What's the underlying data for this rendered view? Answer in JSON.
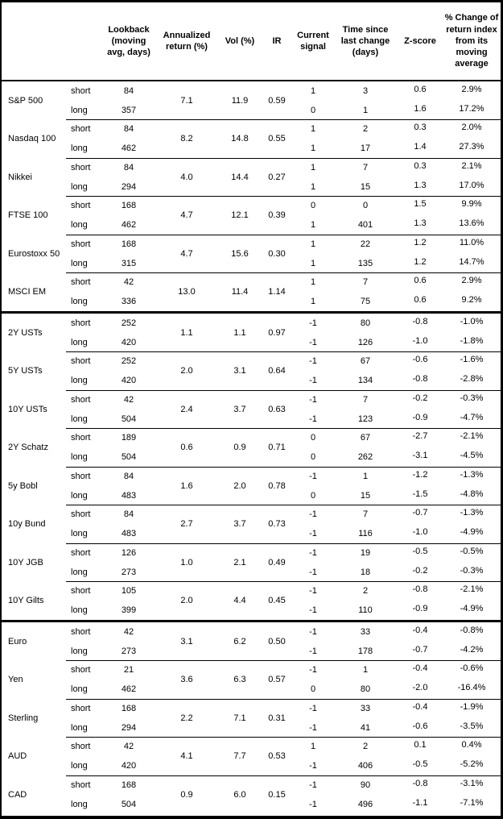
{
  "header": {
    "columns": [
      {
        "key": "lookback",
        "label": "Lookback\n(moving\navg, days)"
      },
      {
        "key": "annualized",
        "label": "Annualized\nreturn (%)"
      },
      {
        "key": "vol",
        "label": "Vol (%)"
      },
      {
        "key": "ir",
        "label": "IR"
      },
      {
        "key": "signal",
        "label": "Current\nsignal"
      },
      {
        "key": "time",
        "label": "Time since\nlast change\n(days)"
      },
      {
        "key": "zscore",
        "label": "Z-score"
      },
      {
        "key": "pct",
        "label": "% Change of\nreturn index\nfrom its\nmoving\naverage"
      }
    ]
  },
  "horizon_labels": {
    "short": "short",
    "long": "long"
  },
  "sections": [
    {
      "id": "equities",
      "instruments": [
        {
          "name": "S&P 500",
          "annualized_return": "7.1",
          "vol": "11.9",
          "ir": "0.59",
          "short": {
            "lookback": "84",
            "signal": "1",
            "time": "3",
            "zscore": "0.6",
            "pct": "2.9%"
          },
          "long": {
            "lookback": "357",
            "signal": "0",
            "time": "1",
            "zscore": "1.6",
            "pct": "17.2%"
          }
        },
        {
          "name": "Nasdaq 100",
          "annualized_return": "8.2",
          "vol": "14.8",
          "ir": "0.55",
          "short": {
            "lookback": "84",
            "signal": "1",
            "time": "2",
            "zscore": "0.3",
            "pct": "2.0%"
          },
          "long": {
            "lookback": "462",
            "signal": "1",
            "time": "17",
            "zscore": "1.4",
            "pct": "27.3%"
          }
        },
        {
          "name": "Nikkei",
          "annualized_return": "4.0",
          "vol": "14.4",
          "ir": "0.27",
          "short": {
            "lookback": "84",
            "signal": "1",
            "time": "7",
            "zscore": "0.3",
            "pct": "2.1%"
          },
          "long": {
            "lookback": "294",
            "signal": "1",
            "time": "15",
            "zscore": "1.3",
            "pct": "17.0%"
          }
        },
        {
          "name": "FTSE 100",
          "annualized_return": "4.7",
          "vol": "12.1",
          "ir": "0.39",
          "short": {
            "lookback": "168",
            "signal": "0",
            "time": "0",
            "zscore": "1.5",
            "pct": "9.9%"
          },
          "long": {
            "lookback": "462",
            "signal": "1",
            "time": "401",
            "zscore": "1.3",
            "pct": "13.6%"
          }
        },
        {
          "name": "Eurostoxx 50",
          "annualized_return": "4.7",
          "vol": "15.6",
          "ir": "0.30",
          "short": {
            "lookback": "168",
            "signal": "1",
            "time": "22",
            "zscore": "1.2",
            "pct": "11.0%"
          },
          "long": {
            "lookback": "315",
            "signal": "1",
            "time": "135",
            "zscore": "1.2",
            "pct": "14.7%"
          }
        },
        {
          "name": "MSCI EM",
          "annualized_return": "13.0",
          "vol": "11.4",
          "ir": "1.14",
          "short": {
            "lookback": "42",
            "signal": "1",
            "time": "7",
            "zscore": "0.6",
            "pct": "2.9%"
          },
          "long": {
            "lookback": "336",
            "signal": "1",
            "time": "75",
            "zscore": "0.6",
            "pct": "9.2%"
          }
        }
      ]
    },
    {
      "id": "bonds",
      "instruments": [
        {
          "name": "2Y USTs",
          "annualized_return": "1.1",
          "vol": "1.1",
          "ir": "0.97",
          "short": {
            "lookback": "252",
            "signal": "-1",
            "time": "80",
            "zscore": "-0.8",
            "pct": "-1.0%"
          },
          "long": {
            "lookback": "420",
            "signal": "-1",
            "time": "126",
            "zscore": "-1.0",
            "pct": "-1.8%"
          }
        },
        {
          "name": "5Y USTs",
          "annualized_return": "2.0",
          "vol": "3.1",
          "ir": "0.64",
          "short": {
            "lookback": "252",
            "signal": "-1",
            "time": "67",
            "zscore": "-0.6",
            "pct": "-1.6%"
          },
          "long": {
            "lookback": "420",
            "signal": "-1",
            "time": "134",
            "zscore": "-0.8",
            "pct": "-2.8%"
          }
        },
        {
          "name": "10Y USTs",
          "annualized_return": "2.4",
          "vol": "3.7",
          "ir": "0.63",
          "short": {
            "lookback": "42",
            "signal": "-1",
            "time": "7",
            "zscore": "-0.2",
            "pct": "-0.3%"
          },
          "long": {
            "lookback": "504",
            "signal": "-1",
            "time": "123",
            "zscore": "-0.9",
            "pct": "-4.7%"
          }
        },
        {
          "name": "2Y Schatz",
          "annualized_return": "0.6",
          "vol": "0.9",
          "ir": "0.71",
          "short": {
            "lookback": "189",
            "signal": "0",
            "time": "67",
            "zscore": "-2.7",
            "pct": "-2.1%"
          },
          "long": {
            "lookback": "504",
            "signal": "0",
            "time": "262",
            "zscore": "-3.1",
            "pct": "-4.5%"
          }
        },
        {
          "name": "5y Bobl",
          "annualized_return": "1.6",
          "vol": "2.0",
          "ir": "0.78",
          "short": {
            "lookback": "84",
            "signal": "-1",
            "time": "1",
            "zscore": "-1.2",
            "pct": "-1.3%"
          },
          "long": {
            "lookback": "483",
            "signal": "0",
            "time": "15",
            "zscore": "-1.5",
            "pct": "-4.8%"
          }
        },
        {
          "name": "10y Bund",
          "annualized_return": "2.7",
          "vol": "3.7",
          "ir": "0.73",
          "short": {
            "lookback": "84",
            "signal": "-1",
            "time": "7",
            "zscore": "-0.7",
            "pct": "-1.3%"
          },
          "long": {
            "lookback": "483",
            "signal": "-1",
            "time": "116",
            "zscore": "-1.0",
            "pct": "-4.9%"
          }
        },
        {
          "name": "10Y JGB",
          "annualized_return": "1.0",
          "vol": "2.1",
          "ir": "0.49",
          "short": {
            "lookback": "126",
            "signal": "-1",
            "time": "19",
            "zscore": "-0.5",
            "pct": "-0.5%"
          },
          "long": {
            "lookback": "273",
            "signal": "-1",
            "time": "18",
            "zscore": "-0.2",
            "pct": "-0.3%"
          }
        },
        {
          "name": "10Y Gilts",
          "annualized_return": "2.0",
          "vol": "4.4",
          "ir": "0.45",
          "short": {
            "lookback": "105",
            "signal": "-1",
            "time": "2",
            "zscore": "-0.8",
            "pct": "-2.1%"
          },
          "long": {
            "lookback": "399",
            "signal": "-1",
            "time": "110",
            "zscore": "-0.9",
            "pct": "-4.9%"
          }
        }
      ]
    },
    {
      "id": "currencies",
      "instruments": [
        {
          "name": "Euro",
          "annualized_return": "3.1",
          "vol": "6.2",
          "ir": "0.50",
          "short": {
            "lookback": "42",
            "signal": "-1",
            "time": "33",
            "zscore": "-0.4",
            "pct": "-0.8%"
          },
          "long": {
            "lookback": "273",
            "signal": "-1",
            "time": "178",
            "zscore": "-0.7",
            "pct": "-4.2%"
          }
        },
        {
          "name": "Yen",
          "annualized_return": "3.6",
          "vol": "6.3",
          "ir": "0.57",
          "short": {
            "lookback": "21",
            "signal": "-1",
            "time": "1",
            "zscore": "-0.4",
            "pct": "-0.6%"
          },
          "long": {
            "lookback": "462",
            "signal": "0",
            "time": "80",
            "zscore": "-2.0",
            "pct": "-16.4%"
          }
        },
        {
          "name": "Sterling",
          "annualized_return": "2.2",
          "vol": "7.1",
          "ir": "0.31",
          "short": {
            "lookback": "168",
            "signal": "-1",
            "time": "33",
            "zscore": "-0.4",
            "pct": "-1.9%"
          },
          "long": {
            "lookback": "294",
            "signal": "-1",
            "time": "41",
            "zscore": "-0.6",
            "pct": "-3.5%"
          }
        },
        {
          "name": "AUD",
          "annualized_return": "4.1",
          "vol": "7.7",
          "ir": "0.53",
          "short": {
            "lookback": "42",
            "signal": "1",
            "time": "2",
            "zscore": "0.1",
            "pct": "0.4%"
          },
          "long": {
            "lookback": "420",
            "signal": "-1",
            "time": "406",
            "zscore": "-0.5",
            "pct": "-5.2%"
          }
        },
        {
          "name": "CAD",
          "annualized_return": "0.9",
          "vol": "6.0",
          "ir": "0.15",
          "short": {
            "lookback": "168",
            "signal": "-1",
            "time": "90",
            "zscore": "-0.8",
            "pct": "-3.1%"
          },
          "long": {
            "lookback": "504",
            "signal": "-1",
            "time": "496",
            "zscore": "-1.1",
            "pct": "-7.1%"
          }
        }
      ]
    }
  ]
}
